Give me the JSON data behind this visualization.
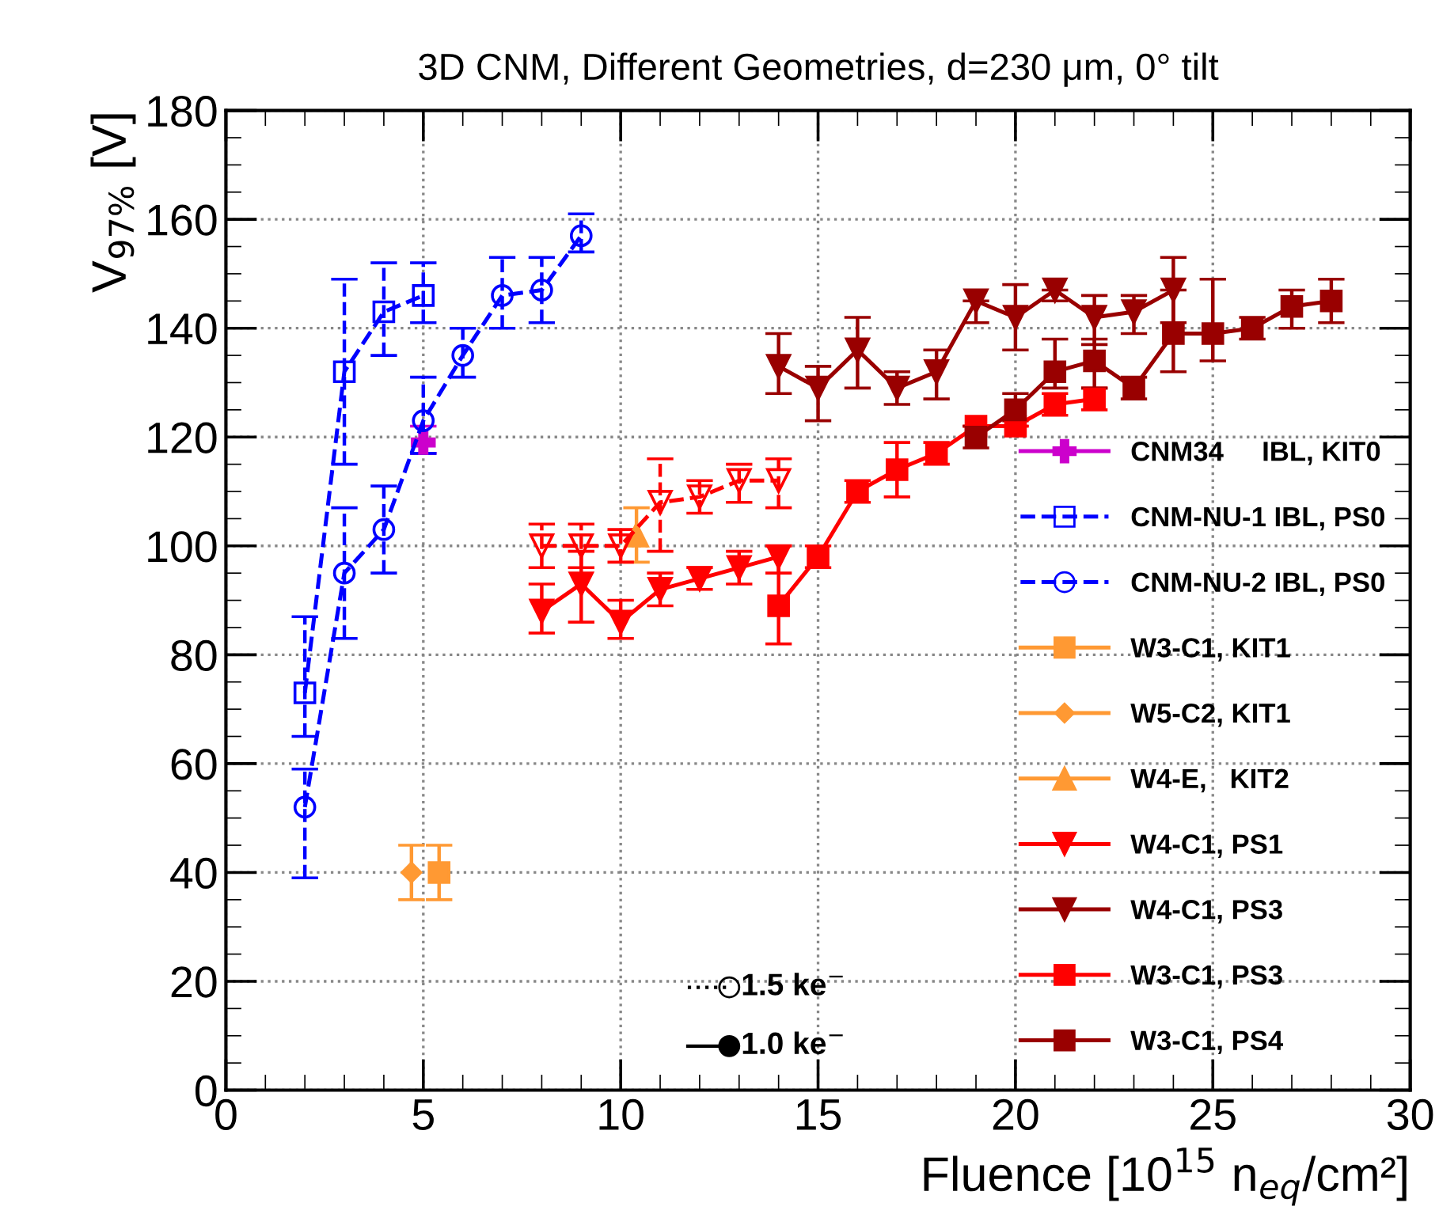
{
  "chart_data": {
    "type": "line",
    "title": "3D CNM, Different Geometries, d=230 μm, 0° tilt",
    "xlabel": "Fluence [10$^{15}$ n$_{eq}$/cm²]",
    "ylabel": "V$_{97%}$ [V]",
    "xlim": [
      0,
      30
    ],
    "xticks": [
      0,
      5,
      10,
      15,
      20,
      25,
      30
    ],
    "ylim": [
      0,
      180
    ],
    "yticks": [
      0,
      20,
      40,
      60,
      80,
      100,
      120,
      140,
      160,
      180
    ],
    "grid": true,
    "legend": "bottom right",
    "annotations": [
      "1.5 ke$^{−}$",
      "1.0 ke$^{−}$"
    ],
    "series": [
      {
        "name": "CNM34     IBL, KIT0",
        "color": "#cc00cc",
        "marker": "cross",
        "line_style": "solid",
        "x": [
          5
        ],
        "values": [
          119
        ],
        "errors": [
          [
            117,
            122
          ]
        ]
      },
      {
        "name": "CNM-NU-1 IBL, PS0",
        "color": "#0000ff",
        "marker": "square",
        "line_style": "dashed",
        "x": [
          2,
          3,
          4,
          5
        ],
        "values": [
          73,
          132,
          143,
          146
        ],
        "errors": [
          [
            65,
            87
          ],
          [
            115,
            149
          ],
          [
            135,
            152
          ],
          [
            141,
            152
          ]
        ]
      },
      {
        "name": "CNM-NU-2 IBL, PS0",
        "color": "#0000ff",
        "marker": "circle",
        "line_style": "dashed",
        "x": [
          2,
          3,
          4,
          5,
          6,
          7,
          8,
          9
        ],
        "values": [
          52,
          95,
          103,
          123,
          135,
          146,
          147,
          157
        ],
        "errors": [
          [
            39,
            59
          ],
          [
            83,
            107
          ],
          [
            95,
            111
          ],
          [
            117,
            131
          ],
          [
            131,
            140
          ],
          [
            140,
            153
          ],
          [
            141,
            153
          ],
          [
            154,
            161
          ]
        ]
      },
      {
        "name": "W3-C1, KIT1",
        "color": "#ff9933",
        "marker": "square",
        "line_style": "solid",
        "x": [
          5.4
        ],
        "values": [
          40
        ],
        "errors": [
          [
            35,
            45
          ]
        ]
      },
      {
        "name": "W5-C2, KIT1",
        "color": "#ff9933",
        "marker": "diamond",
        "line_style": "solid",
        "x": [
          4.7
        ],
        "values": [
          40
        ],
        "errors": [
          [
            35,
            45
          ]
        ]
      },
      {
        "name": "W4-E,   KIT2",
        "color": "#ff9933",
        "marker": "triangle",
        "line_style": "solid",
        "x": [
          10.4
        ],
        "values": [
          102
        ],
        "errors": [
          [
            97,
            107
          ]
        ]
      },
      {
        "name": "W4-C1, PS1",
        "color": "#ff0000",
        "marker": "triangle_down",
        "line_style": "solid",
        "x": [
          8,
          9,
          10,
          11,
          12,
          13,
          14
        ],
        "values": [
          88,
          93,
          86,
          92,
          94,
          96,
          98
        ],
        "errors": [
          [
            84,
            93
          ],
          [
            86,
            99
          ],
          [
            83,
            90
          ],
          [
            89,
            95
          ],
          [
            92,
            96
          ],
          [
            93,
            99
          ],
          [
            95,
            100
          ]
        ]
      },
      {
        "name": "W4-C1, PS3",
        "color": "#990000",
        "marker": "triangle_down",
        "line_style": "solid",
        "x": [
          14,
          15,
          16,
          17,
          18,
          19,
          20,
          21,
          22,
          23,
          24
        ],
        "values": [
          133,
          129,
          136,
          129,
          132,
          145,
          142,
          147,
          142,
          143,
          147
        ],
        "errors": [
          [
            128,
            139
          ],
          [
            123,
            133
          ],
          [
            129,
            142
          ],
          [
            126,
            132
          ],
          [
            127,
            136
          ],
          [
            141,
            145
          ],
          [
            136,
            148
          ],
          [
            145,
            147
          ],
          [
            137,
            146
          ],
          [
            139,
            146
          ],
          [
            141,
            153
          ]
        ]
      },
      {
        "name": "W3-C1, PS3",
        "color": "#ff0000",
        "marker": "square",
        "line_style": "solid",
        "x": [
          14,
          15,
          16,
          17,
          18,
          19,
          20,
          21,
          22
        ],
        "values": [
          89,
          98,
          110,
          114,
          117,
          122,
          122,
          126,
          127
        ],
        "errors": [
          [
            82,
            100
          ],
          [
            96,
            100
          ],
          [
            108,
            112
          ],
          [
            109,
            119
          ],
          [
            115,
            119
          ],
          null,
          null,
          [
            124,
            128
          ],
          [
            125,
            129
          ]
        ]
      },
      {
        "name": "W3-C1, PS4",
        "color": "#990000",
        "marker": "square",
        "line_style": "solid",
        "x": [
          19,
          20,
          21,
          22,
          23,
          24,
          25,
          26,
          27,
          28
        ],
        "values": [
          120,
          125,
          132,
          134,
          129,
          139,
          139,
          140,
          144,
          145
        ],
        "errors": [
          [
            118,
            122
          ],
          [
            123,
            128
          ],
          [
            129,
            138
          ],
          [
            129,
            138
          ],
          [
            127,
            131
          ],
          [
            132,
            147
          ],
          [
            134,
            149
          ],
          [
            138,
            142
          ],
          [
            140,
            147
          ],
          [
            141,
            149
          ]
        ]
      },
      {
        "color": "#ff0000",
        "marker": "triangle_down",
        "line_style": "dashed",
        "x": [
          8,
          9,
          10,
          11,
          12,
          13,
          14
        ],
        "values": [
          100,
          100,
          100,
          108,
          109,
          112,
          112
        ],
        "errors": [
          [
            96,
            104
          ],
          [
            96,
            104
          ],
          [
            97,
            103
          ],
          [
            99,
            116
          ],
          [
            106,
            112
          ],
          [
            108,
            115
          ],
          [
            107,
            116
          ]
        ]
      }
    ]
  }
}
